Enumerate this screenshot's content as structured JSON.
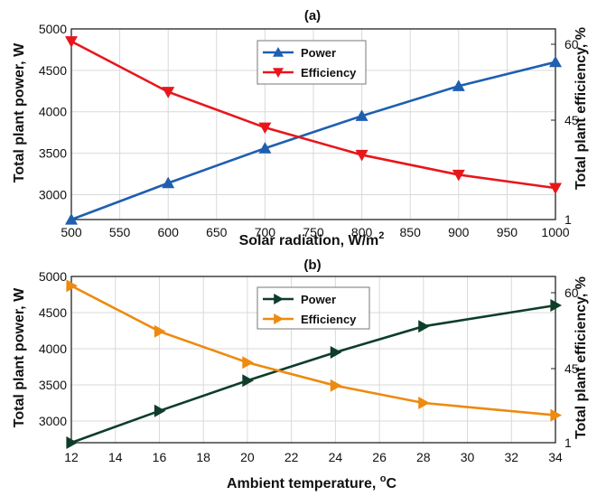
{
  "chart_data": [
    {
      "type": "line",
      "title": "(a)",
      "xlabel": "Solar radiation, W/m",
      "xlabel_sup": "2",
      "ylabel": "Total plant power, W",
      "ylabel_right": "Total plant efficiency, %",
      "x": [
        500,
        600,
        700,
        800,
        900,
        1000
      ],
      "xlim": [
        500,
        1000
      ],
      "ylim": [
        2700,
        5000
      ],
      "yticks": [
        3000,
        3500,
        4000,
        4500,
        5000
      ],
      "xticks": [
        500,
        550,
        600,
        650,
        700,
        750,
        800,
        850,
        900,
        950,
        1000
      ],
      "right_tick_labels": [
        "1",
        "45",
        "60"
      ],
      "grid": true,
      "legend_position": "top-center",
      "series": [
        {
          "name": "Power",
          "axis": "left",
          "color": "#1f5fb0",
          "marker": "triangle-up",
          "values": [
            2700,
            3140,
            3560,
            3950,
            4310,
            4600
          ]
        },
        {
          "name": "Efficiency",
          "axis": "left",
          "color": "#e8161c",
          "marker": "triangle-down",
          "values": [
            4850,
            4240,
            3810,
            3480,
            3240,
            3080
          ]
        }
      ]
    },
    {
      "type": "line",
      "title": "(b)",
      "xlabel": "Ambient temperature, ",
      "xlabel_sup": "o",
      "xlabel_after": "C",
      "ylabel": "Total plant power, W",
      "ylabel_right": "Total plant efficiency, %",
      "x": [
        12,
        16,
        20,
        24,
        28,
        34
      ],
      "xlim": [
        12,
        34
      ],
      "ylim": [
        2700,
        5000
      ],
      "yticks": [
        3000,
        3500,
        4000,
        4500,
        5000
      ],
      "xticks": [
        12,
        14,
        16,
        18,
        20,
        22,
        24,
        26,
        28,
        30,
        32,
        34
      ],
      "right_tick_labels": [
        "1",
        "45",
        "60"
      ],
      "grid": true,
      "legend_position": "top-center",
      "series": [
        {
          "name": "Power",
          "axis": "left",
          "color": "#0e3d2a",
          "marker": "triangle-right",
          "values": [
            2700,
            3140,
            3560,
            3950,
            4310,
            4600
          ]
        },
        {
          "name": "Efficiency",
          "axis": "left",
          "color": "#ee8a10",
          "marker": "triangle-right",
          "values": [
            4870,
            4240,
            3810,
            3490,
            3250,
            3080
          ]
        }
      ]
    }
  ]
}
